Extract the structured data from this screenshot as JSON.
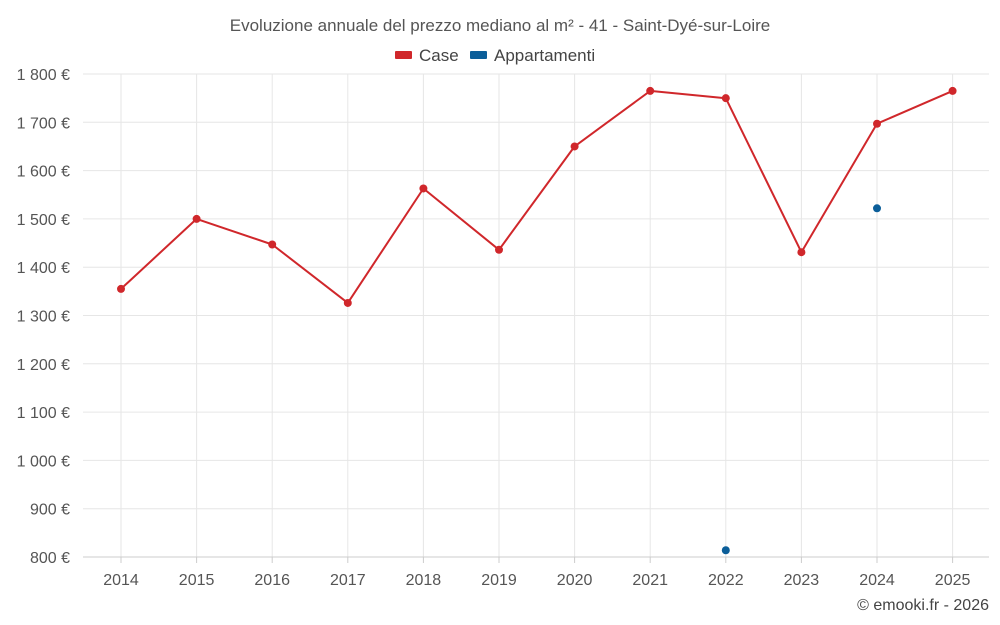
{
  "chart_data": {
    "type": "line",
    "title": "Evoluzione annuale del prezzo mediano al m² - 41 - Saint-Dyé-sur-Loire",
    "categories": [
      "2014",
      "2015",
      "2016",
      "2017",
      "2018",
      "2019",
      "2020",
      "2021",
      "2022",
      "2023",
      "2024",
      "2025"
    ],
    "series": [
      {
        "name": "Case",
        "color": "#d0272b",
        "values": [
          1355,
          1500,
          1447,
          1326,
          1563,
          1436,
          1650,
          1765,
          1750,
          1431,
          1697,
          1765
        ]
      },
      {
        "name": "Appartamenti",
        "color": "#0b5e99",
        "values": [
          null,
          null,
          null,
          null,
          null,
          null,
          null,
          null,
          814,
          null,
          1522,
          null
        ]
      }
    ],
    "ylim": [
      800,
      1800
    ],
    "yticks": [
      800,
      900,
      1000,
      1100,
      1200,
      1300,
      1400,
      1500,
      1600,
      1700,
      1800
    ],
    "ytick_labels": [
      "800 €",
      "900 €",
      "1 000 €",
      "1 100 €",
      "1 200 €",
      "1 300 €",
      "1 400 €",
      "1 500 €",
      "1 600 €",
      "1 700 €",
      "1 800 €"
    ],
    "grid": true,
    "legend_position": "top-center",
    "credit": "© emooki.fr - 2026"
  }
}
